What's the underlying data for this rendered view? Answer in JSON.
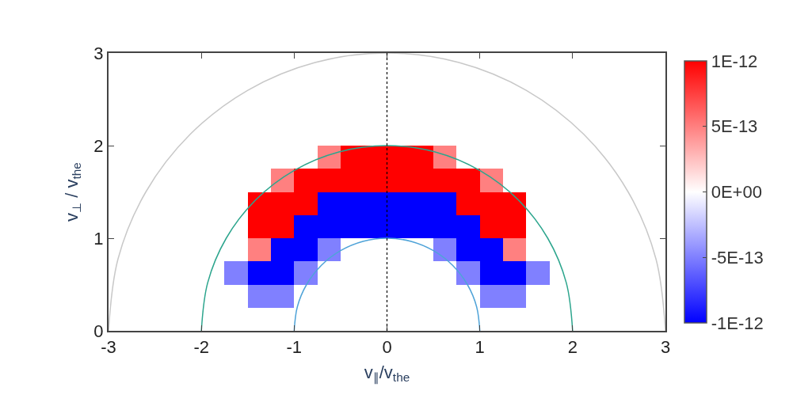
{
  "chart_data": {
    "type": "heatmap",
    "xlabel": "v$_{∥}$/v$_{the}$",
    "ylabel": "v$_{⊥}$ / v$_{the}$",
    "x": [
      -2.875,
      -2.625,
      -2.375,
      -2.125,
      -1.875,
      -1.625,
      -1.375,
      -1.125,
      -0.875,
      -0.625,
      -0.375,
      -0.125,
      0.125,
      0.375,
      0.625,
      0.875,
      1.125,
      1.375,
      1.625,
      1.875,
      2.125,
      2.375,
      2.625,
      2.875
    ],
    "y": [
      2.875,
      2.625,
      2.375,
      2.125,
      1.875,
      1.625,
      1.375,
      1.125,
      0.875,
      0.625,
      0.375,
      0.125
    ],
    "cells": [
      [
        0,
        0,
        0,
        0,
        0,
        0,
        0,
        0,
        0,
        0,
        0,
        0,
        0,
        0,
        0,
        0,
        0,
        0,
        0,
        0,
        0,
        0,
        0,
        0
      ],
      [
        0,
        0,
        0,
        0,
        0,
        0,
        0,
        0,
        0,
        0,
        0,
        0,
        0,
        0,
        0,
        0,
        0,
        0,
        0,
        0,
        0,
        0,
        0,
        0
      ],
      [
        0,
        0,
        0,
        0,
        0,
        0,
        0,
        0,
        0,
        0,
        0,
        0,
        0,
        0,
        0,
        0,
        0,
        0,
        0,
        0,
        0,
        0,
        0,
        0
      ],
      [
        0,
        0,
        0,
        0,
        0,
        0,
        0,
        0,
        0,
        0,
        0,
        0,
        0,
        0,
        0,
        0,
        0,
        0,
        0,
        0,
        0,
        0,
        0,
        0
      ],
      [
        0,
        0,
        0,
        0,
        0,
        0,
        0,
        0,
        0,
        5e-13,
        1e-12,
        1e-12,
        1e-12,
        1e-12,
        5e-13,
        0,
        0,
        0,
        0,
        0,
        0,
        0,
        0,
        0
      ],
      [
        0,
        0,
        0,
        0,
        0,
        0,
        0,
        5e-13,
        1e-12,
        1e-12,
        1e-12,
        1e-12,
        1e-12,
        1e-12,
        1e-12,
        1e-12,
        5e-13,
        0,
        0,
        0,
        0,
        0,
        0,
        0
      ],
      [
        0,
        0,
        0,
        0,
        0,
        0,
        1e-12,
        1e-12,
        1e-12,
        -1e-12,
        -1e-12,
        -1e-12,
        -1e-12,
        -1e-12,
        -1e-12,
        1e-12,
        1e-12,
        1e-12,
        0,
        0,
        0,
        0,
        0,
        0
      ],
      [
        0,
        0,
        0,
        0,
        0,
        0,
        1e-12,
        1e-12,
        -1e-12,
        -1e-12,
        -1e-12,
        -1e-12,
        -1e-12,
        -1e-12,
        -1e-12,
        -1e-12,
        1e-12,
        1e-12,
        0,
        0,
        0,
        0,
        0,
        0
      ],
      [
        0,
        0,
        0,
        0,
        0,
        0,
        5e-13,
        -1e-12,
        -1e-12,
        -5e-13,
        0,
        0,
        0,
        0,
        -5e-13,
        -1e-12,
        -1e-12,
        5e-13,
        0,
        0,
        0,
        0,
        0,
        0
      ],
      [
        0,
        0,
        0,
        0,
        0,
        -5e-13,
        -1e-12,
        -1e-12,
        -5e-13,
        0,
        0,
        0,
        0,
        0,
        0,
        -5e-13,
        -1e-12,
        -1e-12,
        -5e-13,
        0,
        0,
        0,
        0,
        0
      ],
      [
        0,
        0,
        0,
        0,
        0,
        0,
        -5e-13,
        -5e-13,
        0,
        0,
        0,
        0,
        0,
        0,
        0,
        0,
        -5e-13,
        -5e-13,
        0,
        0,
        0,
        0,
        0,
        0
      ],
      [
        0,
        0,
        0,
        0,
        0,
        0,
        0,
        0,
        0,
        0,
        0,
        0,
        0,
        0,
        0,
        0,
        0,
        0,
        0,
        0,
        0,
        0,
        0,
        0
      ]
    ],
    "colors": [
      "#0000ff",
      "#ffffff",
      "#ff0000"
    ],
    "clim": [
      -1e-12,
      1e-12
    ],
    "cticks": [
      {
        "value": 1e-12,
        "label": "1E-12"
      },
      {
        "value": 5e-13,
        "label": "5E-13"
      },
      {
        "value": 0,
        "label": "0E+00"
      },
      {
        "value": -5e-13,
        "label": "-5E-13"
      },
      {
        "value": -1e-12,
        "label": "-1E-12"
      }
    ],
    "series": [
      {
        "type": "line",
        "color": "#c8c8c8",
        "x": [
          3,
          2.898,
          2.598,
          2.121,
          1.5,
          0.776,
          0,
          -0.776,
          -1.5,
          -2.121,
          -2.598,
          -2.898,
          -3
        ],
        "values": [
          0,
          0.776,
          1.5,
          2.121,
          2.598,
          2.898,
          3,
          2.898,
          2.598,
          2.121,
          1.5,
          0.776,
          0
        ]
      },
      {
        "type": "line",
        "color": "#2ca58d",
        "x": [
          2,
          1.932,
          1.732,
          1.414,
          1,
          0.518,
          0,
          -0.518,
          -1,
          -1.414,
          -1.732,
          -1.932,
          -2
        ],
        "values": [
          0,
          0.518,
          1,
          1.414,
          1.732,
          1.932,
          2,
          1.932,
          1.732,
          1.414,
          1,
          0.518,
          0
        ]
      },
      {
        "type": "line",
        "color": "#4fa3d8",
        "x": [
          1,
          0.966,
          0.866,
          0.707,
          0.5,
          0.259,
          0,
          -0.259,
          -0.5,
          -0.707,
          -0.866,
          -0.966,
          -1
        ],
        "values": [
          0,
          0.259,
          0.5,
          0.707,
          0.866,
          0.966,
          1,
          0.966,
          0.866,
          0.707,
          0.5,
          0.259,
          0
        ]
      }
    ],
    "ref_lines": [
      {
        "axis": "x",
        "value": 0,
        "color": "#000000",
        "line_style": "dotted"
      }
    ],
    "xlim": [
      -3,
      3
    ],
    "ylim": [
      0,
      3
    ],
    "xticks": [
      -3,
      -2,
      -1,
      0,
      1,
      2,
      3
    ],
    "yticks": [
      0,
      1,
      2,
      3
    ]
  }
}
